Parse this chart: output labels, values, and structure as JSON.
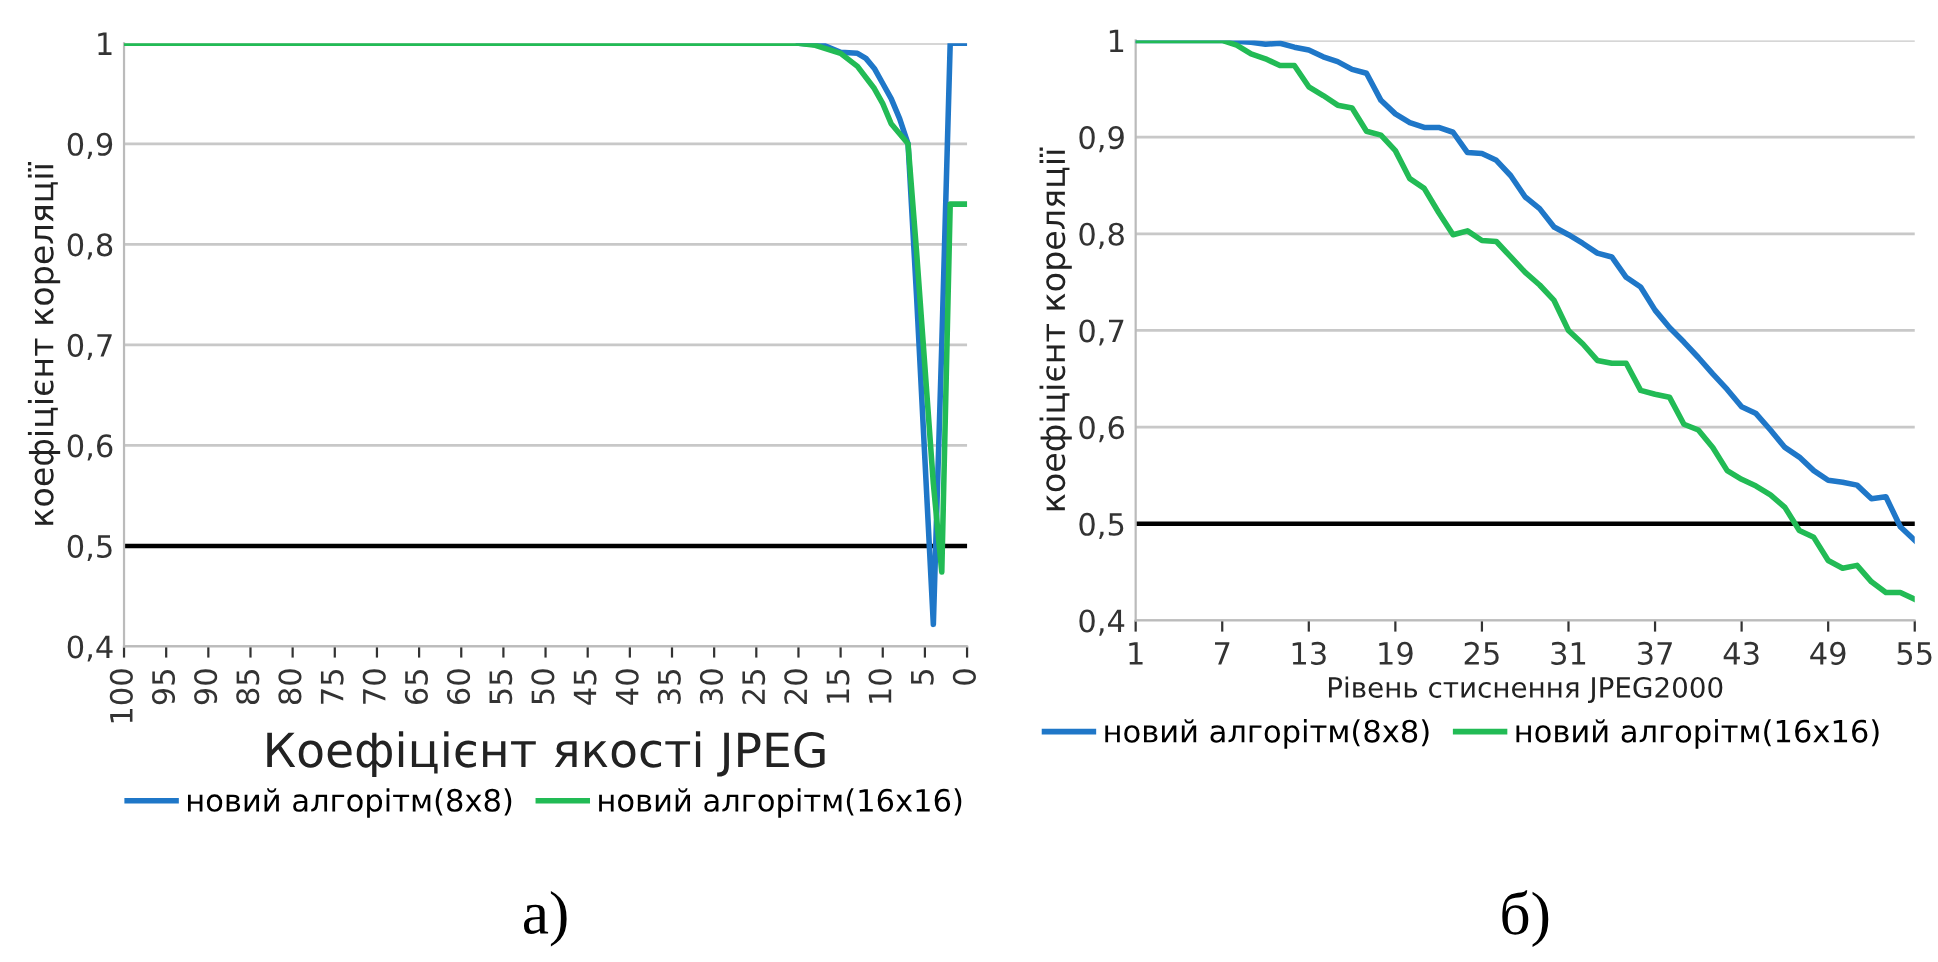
{
  "chart_data": [
    {
      "type": "line",
      "xlabel": "Коефіцієнт якості JPEG",
      "ylabel": "коефіцієнт кореляції",
      "xlim": [
        100,
        0
      ],
      "xticks": [
        100,
        95,
        90,
        85,
        80,
        75,
        70,
        65,
        60,
        55,
        50,
        45,
        40,
        35,
        30,
        25,
        20,
        15,
        10,
        5,
        0
      ],
      "ylim": [
        0.4,
        1
      ],
      "yticks": [
        {
          "value": 0.4,
          "label": "0,4"
        },
        {
          "value": 0.5,
          "label": "0,5"
        },
        {
          "value": 0.6,
          "label": "0,6"
        },
        {
          "value": 0.7,
          "label": "0,7"
        },
        {
          "value": 0.8,
          "label": "0,8"
        },
        {
          "value": 0.9,
          "label": "0,9"
        },
        1
      ],
      "grid": "y",
      "legend": "bottom",
      "marker": "none",
      "line_style": "solid",
      "ref_lines": [
        {
          "axis": "y",
          "value": 0.5,
          "color": "#000000"
        }
      ],
      "annotations": [
        "а)"
      ],
      "series": [
        {
          "name": "новий алгорітм(8x8)",
          "color": "#1f77c8",
          "x": [
            20,
            17,
            15,
            13,
            12,
            11,
            10,
            9,
            8,
            7,
            6,
            5,
            4,
            3,
            2,
            1,
            0
          ],
          "values": [
            1,
            0.998,
            0.991,
            0.99,
            0.985,
            0.975,
            0.96,
            0.945,
            0.925,
            0.9,
            0.75,
            0.586,
            0.422,
            0.7,
            1,
            1,
            1
          ]
        },
        {
          "name": "новий алгорітм(16x16)",
          "color": "#22bb55",
          "x": [
            100,
            50,
            20,
            18,
            15,
            13,
            11,
            10,
            9,
            8,
            7,
            6,
            5,
            4,
            3,
            2,
            1,
            0
          ],
          "values": [
            1,
            1,
            1,
            0.998,
            0.99,
            0.977,
            0.955,
            0.94,
            0.92,
            0.91,
            0.9,
            0.794,
            0.678,
            0.562,
            0.474,
            0.84,
            0.84,
            0.84
          ]
        }
      ]
    },
    {
      "type": "line",
      "xlabel": "Рівень стиснення JPEG2000",
      "ylabel": "коефіцієнт кореляції",
      "xlim": [
        1,
        55
      ],
      "xticks": [
        1,
        7,
        13,
        19,
        25,
        31,
        37,
        43,
        49,
        55
      ],
      "ylim": [
        0.4,
        1
      ],
      "yticks": [
        {
          "value": 0.4,
          "label": "0,4"
        },
        {
          "value": 0.5,
          "label": "0,5"
        },
        {
          "value": 0.6,
          "label": "0,6"
        },
        {
          "value": 0.7,
          "label": "0,7"
        },
        {
          "value": 0.8,
          "label": "0,8"
        },
        {
          "value": 0.9,
          "label": "0,9"
        },
        1
      ],
      "grid": "y",
      "legend": "bottom",
      "marker": "none",
      "line_style": "solid",
      "ref_lines": [
        {
          "axis": "y",
          "value": 0.5,
          "color": "#000000"
        }
      ],
      "annotations": [
        "б)"
      ],
      "series": [
        {
          "name": "новий алгорітм(8x8)",
          "color": "#1f77c8",
          "x": [
            1,
            7,
            9,
            10,
            11,
            12,
            13,
            14,
            15,
            16,
            17,
            18,
            19,
            20,
            21,
            22,
            23,
            24,
            25,
            26,
            27,
            28,
            29,
            30,
            31,
            32,
            33,
            34,
            35,
            36,
            37,
            38,
            39,
            40,
            41,
            42,
            43,
            44,
            45,
            46,
            47,
            48,
            49,
            50,
            51,
            52,
            53,
            54,
            55
          ],
          "values": [
            1,
            1,
            0.998,
            0.996,
            0.997,
            0.993,
            0.99,
            0.983,
            0.978,
            0.97,
            0.966,
            0.938,
            0.924,
            0.915,
            0.91,
            0.91,
            0.905,
            0.884,
            0.883,
            0.876,
            0.86,
            0.838,
            0.826,
            0.807,
            0.799,
            0.79,
            0.78,
            0.776,
            0.755,
            0.745,
            0.721,
            0.703,
            0.688,
            0.672,
            0.655,
            0.639,
            0.621,
            0.614,
            0.597,
            0.579,
            0.569,
            0.555,
            0.545,
            0.543,
            0.54,
            0.526,
            0.528,
            0.497,
            0.483
          ]
        },
        {
          "name": "новий алгорітм(16x16)",
          "color": "#22bb55",
          "x": [
            1,
            7,
            8,
            9,
            10,
            11,
            12,
            13,
            14,
            15,
            16,
            17,
            18,
            19,
            20,
            21,
            22,
            23,
            24,
            25,
            26,
            27,
            28,
            29,
            30,
            31,
            32,
            33,
            34,
            35,
            36,
            37,
            38,
            39,
            40,
            41,
            42,
            43,
            44,
            45,
            46,
            47,
            48,
            49,
            50,
            51,
            52,
            53,
            54,
            55
          ],
          "values": [
            1,
            1,
            0.995,
            0.986,
            0.981,
            0.974,
            0.974,
            0.952,
            0.943,
            0.933,
            0.93,
            0.906,
            0.902,
            0.886,
            0.857,
            0.847,
            0.822,
            0.799,
            0.803,
            0.793,
            0.792,
            0.776,
            0.76,
            0.747,
            0.731,
            0.7,
            0.686,
            0.669,
            0.666,
            0.666,
            0.638,
            0.634,
            0.631,
            0.603,
            0.597,
            0.579,
            0.555,
            0.546,
            0.539,
            0.53,
            0.517,
            0.493,
            0.486,
            0.462,
            0.454,
            0.457,
            0.44,
            0.429,
            0.429,
            0.422
          ]
        }
      ]
    }
  ]
}
